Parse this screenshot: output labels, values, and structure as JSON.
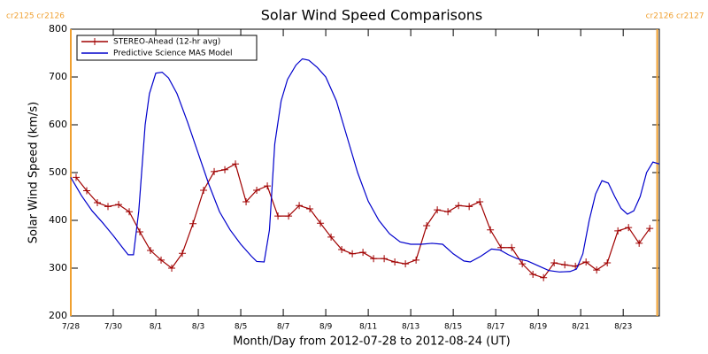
{
  "chart_data": {
    "type": "line",
    "title": "Solar Wind Speed Comparisons",
    "xlabel": "Month/Day from 2012-07-28 to 2012-08-24 (UT)",
    "ylabel": "Solar Wind Speed (km/s)",
    "xlim": [
      0,
      27.7
    ],
    "ylim": [
      200,
      800
    ],
    "xticks": [
      {
        "value": 0,
        "label": "7/28"
      },
      {
        "value": 2,
        "label": "7/30"
      },
      {
        "value": 4,
        "label": "8/1"
      },
      {
        "value": 6,
        "label": "8/3"
      },
      {
        "value": 8,
        "label": "8/5"
      },
      {
        "value": 10,
        "label": "8/7"
      },
      {
        "value": 12,
        "label": "8/9"
      },
      {
        "value": 14,
        "label": "8/11"
      },
      {
        "value": 16,
        "label": "8/13"
      },
      {
        "value": 18,
        "label": "8/15"
      },
      {
        "value": 20,
        "label": "8/17"
      },
      {
        "value": 22,
        "label": "8/19"
      },
      {
        "value": 24,
        "label": "8/21"
      },
      {
        "value": 26,
        "label": "8/23"
      }
    ],
    "yticks": [
      200,
      300,
      400,
      500,
      600,
      700,
      800
    ],
    "legend": "upper left",
    "annotations": [
      {
        "text": "cr2125 cr2126",
        "x": 0,
        "color": "#f0a030"
      },
      {
        "text": "cr2126 cr2127",
        "x": 27.6,
        "color": "#f0a030"
      }
    ],
    "series": [
      {
        "name": "STEREO-Ahead (12-hr avg)",
        "color": "#a00000",
        "marker": "+",
        "x": [
          0.25,
          0.75,
          1.25,
          1.75,
          2.25,
          2.75,
          3.25,
          3.75,
          4.25,
          4.75,
          5.25,
          5.75,
          6.25,
          6.75,
          7.25,
          7.75,
          8.25,
          8.75,
          9.25,
          9.75,
          10.25,
          10.75,
          11.25,
          11.75,
          12.25,
          12.75,
          13.25,
          13.75,
          14.25,
          14.75,
          15.25,
          15.75,
          16.25,
          16.75,
          17.25,
          17.75,
          18.25,
          18.75,
          19.25,
          19.75,
          20.25,
          20.75,
          21.25,
          21.75,
          22.25,
          22.75,
          23.25,
          23.75,
          24.25,
          24.75,
          25.25,
          25.75,
          26.25,
          26.75,
          27.25
        ],
        "values": [
          490,
          462,
          437,
          429,
          433,
          418,
          376,
          337,
          317,
          300,
          331,
          393,
          463,
          502,
          506,
          518,
          439,
          463,
          472,
          409,
          409,
          431,
          424,
          394,
          365,
          339,
          330,
          333,
          320,
          320,
          313,
          309,
          317,
          389,
          422,
          418,
          431,
          429,
          439,
          380,
          343,
          343,
          309,
          287,
          280,
          311,
          307,
          304,
          313,
          296,
          311,
          378,
          385,
          352,
          383
        ]
      },
      {
        "name": "Predictive Science MAS Model",
        "color": "#0000cc",
        "x": [
          0,
          0.5,
          1,
          1.5,
          2,
          2.4,
          2.7,
          2.95,
          3.2,
          3.5,
          3.7,
          4.0,
          4.3,
          4.6,
          5.0,
          5.5,
          6,
          6.5,
          7,
          7.5,
          8,
          8.5,
          8.75,
          9.1,
          9.35,
          9.6,
          9.9,
          10.2,
          10.6,
          10.9,
          11.2,
          11.6,
          12,
          12.5,
          13,
          13.5,
          14,
          14.5,
          15,
          15.5,
          16,
          16.5,
          17,
          17.5,
          18,
          18.5,
          18.8,
          19.3,
          19.8,
          20.2,
          20.6,
          21,
          21.5,
          22,
          22.5,
          23,
          23.5,
          23.8,
          24.1,
          24.4,
          24.7,
          25,
          25.3,
          25.6,
          25.9,
          26.2,
          26.5,
          26.8,
          27.1,
          27.4,
          27.7
        ],
        "values": [
          490,
          452,
          420,
          395,
          368,
          345,
          328,
          328,
          420,
          600,
          665,
          708,
          710,
          698,
          665,
          605,
          540,
          475,
          418,
          380,
          350,
          325,
          314,
          313,
          380,
          560,
          650,
          695,
          725,
          738,
          735,
          720,
          700,
          650,
          575,
          500,
          440,
          400,
          372,
          355,
          350,
          350,
          352,
          350,
          330,
          315,
          313,
          325,
          340,
          338,
          328,
          320,
          315,
          305,
          295,
          292,
          293,
          298,
          330,
          400,
          455,
          483,
          478,
          450,
          425,
          413,
          420,
          450,
          500,
          522,
          518
        ]
      }
    ]
  }
}
